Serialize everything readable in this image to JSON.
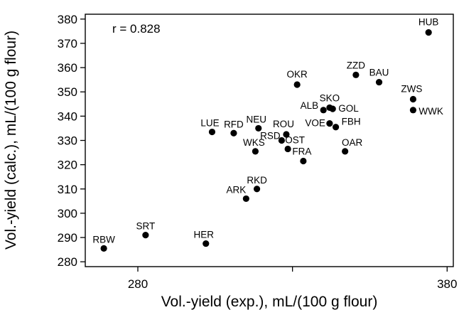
{
  "chart_data": {
    "type": "scatter",
    "xlabel": "Vol.-yield (exp.), mL/(100 g flour)",
    "ylabel": "Vol.-yield (calc.), mL/(100 g flour)",
    "annotation": "r = 0.828",
    "xlim": [
      263,
      382
    ],
    "ylim": [
      278,
      382
    ],
    "xticks": [
      280,
      330,
      380
    ],
    "xtick_labels": [
      "280",
      "",
      "380"
    ],
    "yticks": [
      280,
      290,
      300,
      310,
      320,
      330,
      340,
      350,
      360,
      370,
      380
    ],
    "points": [
      {
        "label": "RBW",
        "x": 269.0,
        "y": 285.5
      },
      {
        "label": "SRT",
        "x": 282.5,
        "y": 291.0
      },
      {
        "label": "HER",
        "x": 302.0,
        "y": 287.5
      },
      {
        "label": "ARK",
        "x": 315.0,
        "y": 306.0
      },
      {
        "label": "RKD",
        "x": 318.5,
        "y": 310.0
      },
      {
        "label": "LUE",
        "x": 304.0,
        "y": 333.5
      },
      {
        "label": "RFD",
        "x": 311.0,
        "y": 333.0
      },
      {
        "label": "NEU",
        "x": 319.0,
        "y": 335.0
      },
      {
        "label": "WKS",
        "x": 318.0,
        "y": 325.5
      },
      {
        "label": "RSD",
        "x": 326.5,
        "y": 330.0
      },
      {
        "label": "ROU",
        "x": 328.0,
        "y": 332.5
      },
      {
        "label": "OST",
        "x": 328.5,
        "y": 326.5
      },
      {
        "label": "OKR",
        "x": 331.5,
        "y": 353.0
      },
      {
        "label": "FRA",
        "x": 333.5,
        "y": 321.5
      },
      {
        "label": "ALB",
        "x": 340.0,
        "y": 342.5
      },
      {
        "label": "SKO",
        "x": 342.0,
        "y": 343.5
      },
      {
        "label": "GOL",
        "x": 343.0,
        "y": 343.0
      },
      {
        "label": "VOE",
        "x": 342.0,
        "y": 337.0
      },
      {
        "label": "FBH",
        "x": 344.0,
        "y": 335.5
      },
      {
        "label": "OAR",
        "x": 347.0,
        "y": 325.5
      },
      {
        "label": "ZZD",
        "x": 350.5,
        "y": 357.0
      },
      {
        "label": "BAU",
        "x": 358.0,
        "y": 354.0
      },
      {
        "label": "ZWS",
        "x": 369.0,
        "y": 347.0
      },
      {
        "label": "WWK",
        "x": 369.0,
        "y": 342.5
      },
      {
        "label": "HUB",
        "x": 374.0,
        "y": 374.5
      }
    ]
  }
}
